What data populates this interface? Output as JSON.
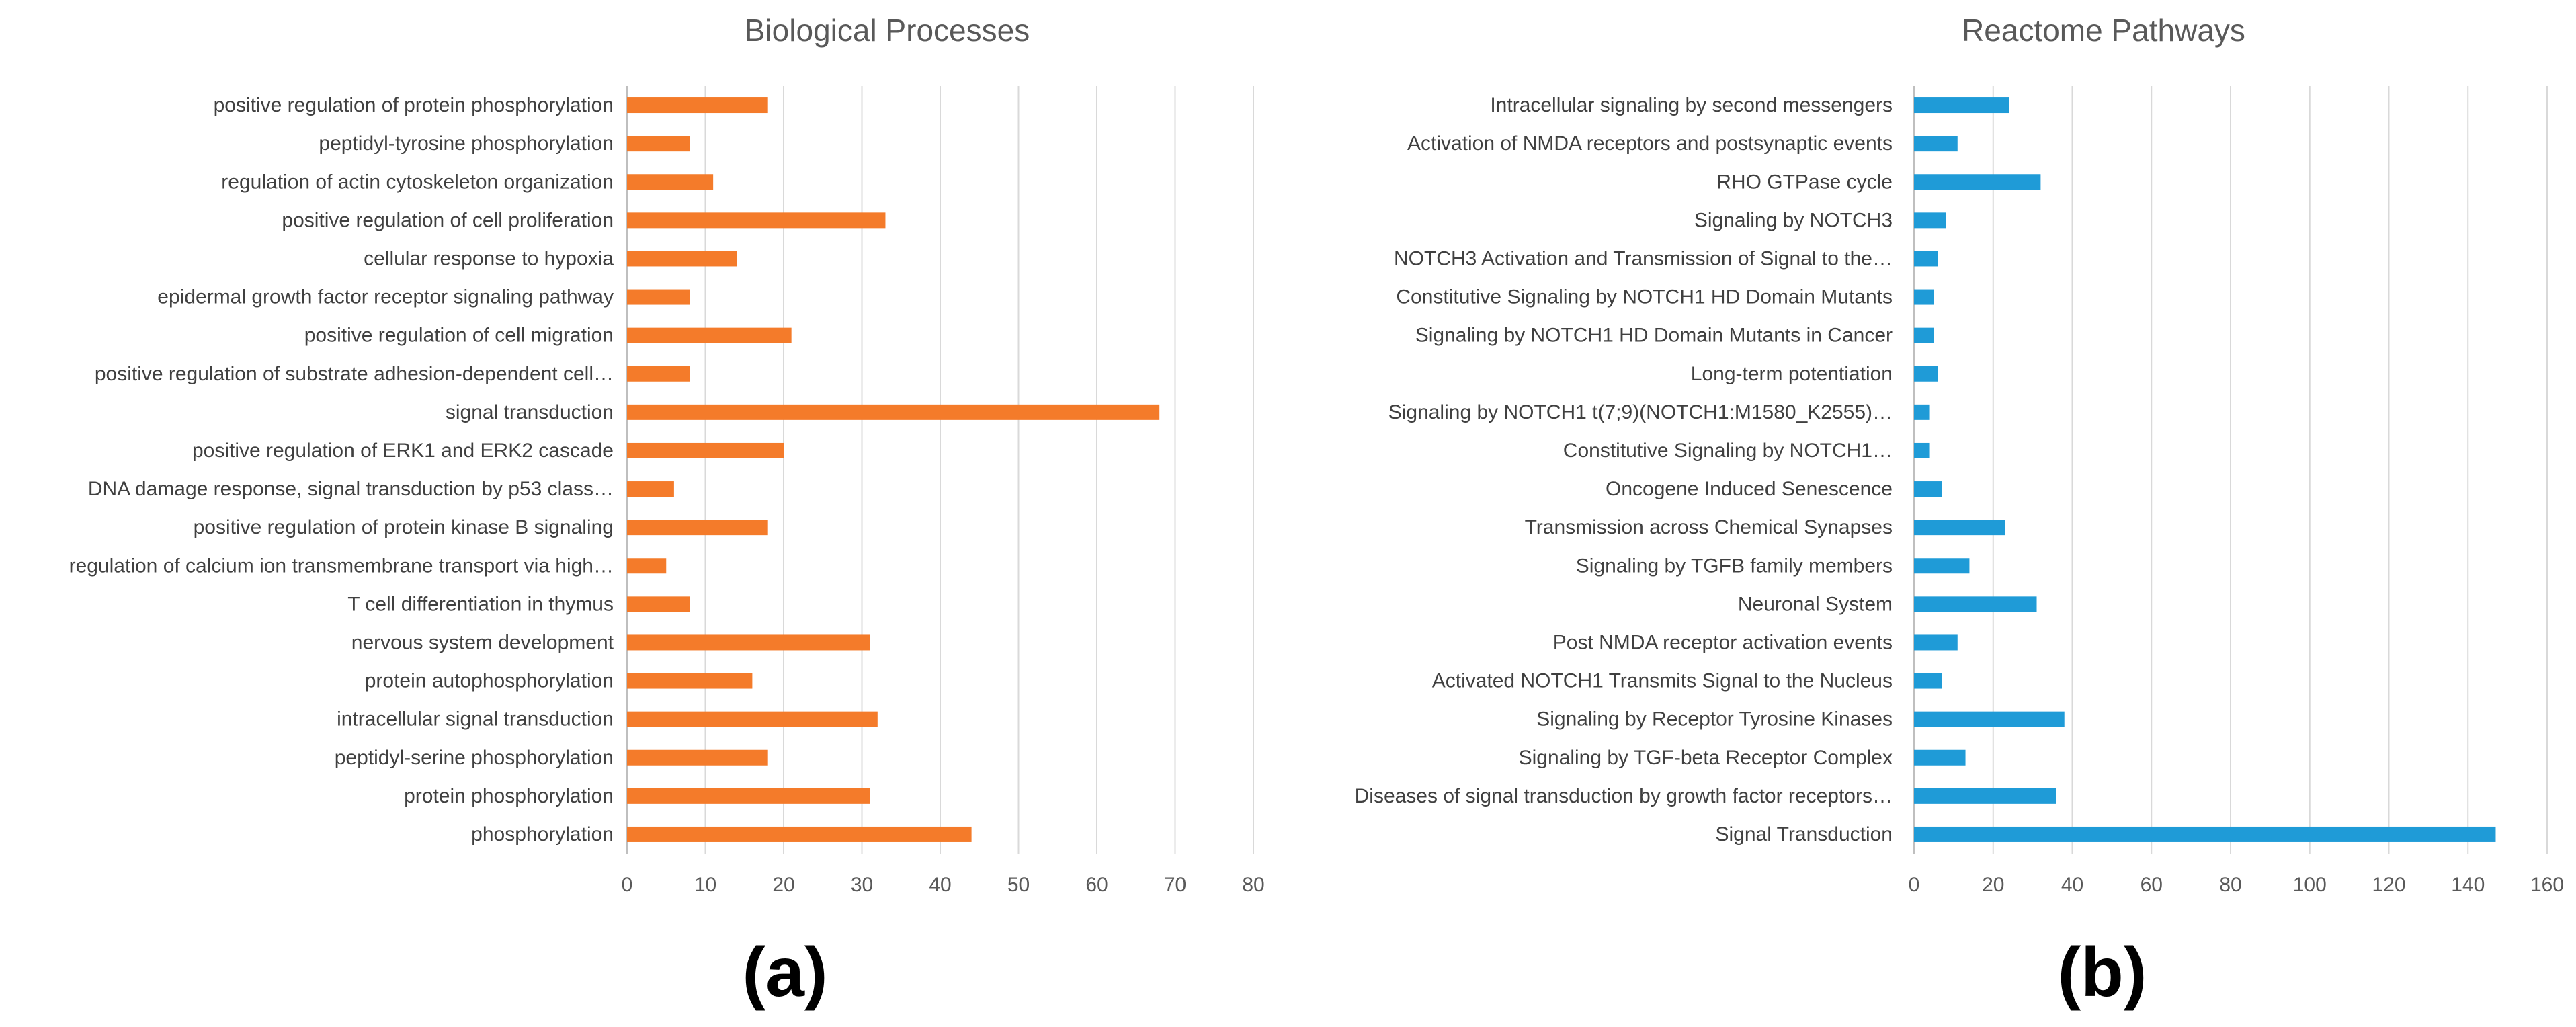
{
  "chart_data": [
    {
      "type": "bar",
      "orientation": "horizontal",
      "title": "Biological Processes",
      "panel_label": "(a)",
      "color": "#F47B2A",
      "xlim": [
        0,
        80
      ],
      "xticks": [
        0,
        10,
        20,
        30,
        40,
        50,
        60,
        70,
        80
      ],
      "grid": true,
      "categories": [
        "positive regulation of protein phosphorylation",
        "peptidyl-tyrosine phosphorylation",
        "regulation of actin cytoskeleton organization",
        "positive regulation of cell proliferation",
        "cellular response to hypoxia",
        "epidermal growth factor receptor signaling pathway",
        "positive regulation of cell migration",
        "positive regulation of substrate adhesion-dependent cell…",
        "signal transduction",
        "positive regulation of ERK1 and ERK2 cascade",
        "DNA damage response, signal transduction by p53 class…",
        "positive regulation of protein kinase B signaling",
        "regulation of calcium ion transmembrane transport via high…",
        "T cell differentiation in thymus",
        "nervous system development",
        "protein autophosphorylation",
        "intracellular signal transduction",
        "peptidyl-serine phosphorylation",
        "protein phosphorylation",
        "phosphorylation"
      ],
      "values": [
        18,
        8,
        11,
        33,
        14,
        8,
        21,
        8,
        68,
        20,
        6,
        18,
        5,
        8,
        31,
        16,
        32,
        18,
        31,
        44
      ]
    },
    {
      "type": "bar",
      "orientation": "horizontal",
      "title": "Reactome Pathways",
      "panel_label": "(b)",
      "color": "#1F9BD7",
      "xlim": [
        0,
        160
      ],
      "xticks": [
        0,
        20,
        40,
        60,
        80,
        100,
        120,
        140,
        160
      ],
      "grid": true,
      "categories": [
        "Intracellular signaling by second messengers",
        "Activation of NMDA receptors and postsynaptic events",
        "RHO GTPase cycle",
        "Signaling by NOTCH3",
        "NOTCH3 Activation and Transmission of Signal to the…",
        "Constitutive Signaling by NOTCH1 HD Domain Mutants",
        "Signaling by NOTCH1 HD Domain Mutants in Cancer",
        "Long-term potentiation",
        "Signaling by NOTCH1 t(7;9)(NOTCH1:M1580_K2555)…",
        "Constitutive Signaling by NOTCH1…",
        "Oncogene Induced Senescence",
        "Transmission across Chemical Synapses",
        "Signaling by TGFB family members",
        "Neuronal System",
        "Post NMDA receptor activation events",
        "Activated NOTCH1 Transmits Signal to the Nucleus",
        "Signaling by Receptor Tyrosine Kinases",
        "Signaling by TGF-beta Receptor Complex",
        "Diseases of signal transduction by growth factor receptors…",
        "Signal Transduction"
      ],
      "values": [
        24,
        11,
        32,
        8,
        6,
        5,
        5,
        6,
        4,
        4,
        7,
        23,
        14,
        31,
        11,
        7,
        38,
        13,
        36,
        147
      ]
    }
  ]
}
